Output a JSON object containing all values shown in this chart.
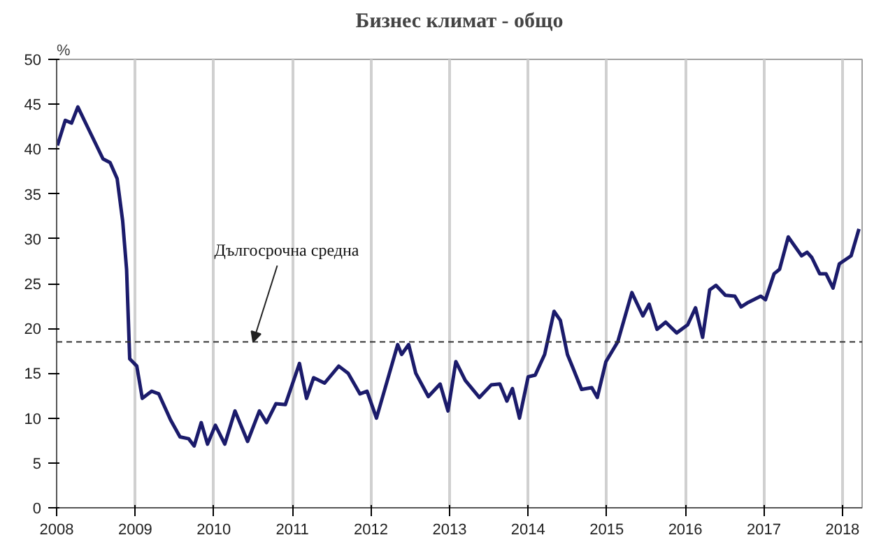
{
  "chart_data": {
    "type": "line",
    "title": "Бизнес климат - общо",
    "ylabel": "%",
    "x": [
      2008.01,
      2008.11,
      2008.19,
      2008.27,
      2008.38,
      2008.59,
      2008.68,
      2008.77,
      2008.84,
      2008.89,
      2008.93,
      2009.02,
      2009.09,
      2009.21,
      2009.3,
      2009.45,
      2009.57,
      2009.68,
      2009.75,
      2009.84,
      2009.92,
      2010.02,
      2010.14,
      2010.27,
      2010.43,
      2010.58,
      2010.67,
      2010.79,
      2010.91,
      2011.09,
      2011.18,
      2011.27,
      2011.41,
      2011.59,
      2011.71,
      2011.86,
      2011.95,
      2012.07,
      2012.34,
      2012.39,
      2012.48,
      2012.57,
      2012.73,
      2012.88,
      2012.98,
      2013.08,
      2013.2,
      2013.38,
      2013.53,
      2013.64,
      2013.73,
      2013.8,
      2013.89,
      2014.0,
      2014.09,
      2014.21,
      2014.33,
      2014.41,
      2014.5,
      2014.57,
      2014.68,
      2014.81,
      2014.88,
      2014.99,
      2015.14,
      2015.32,
      2015.46,
      2015.54,
      2015.64,
      2015.75,
      2015.89,
      2016.03,
      2016.13,
      2016.22,
      2016.31,
      2016.39,
      2016.51,
      2016.63,
      2016.71,
      2016.8,
      2016.96,
      2017.02,
      2017.13,
      2017.2,
      2017.31,
      2017.48,
      2017.55,
      2017.61,
      2017.71,
      2017.79,
      2017.88,
      2017.96,
      2018.11,
      2018.21
    ],
    "series": [
      {
        "color": "#1b1b6b",
        "values": [
          40.4,
          43.2,
          42.9,
          44.7,
          42.7,
          38.9,
          38.5,
          36.7,
          32,
          26.6,
          16.6,
          15.8,
          12.2,
          13.0,
          12.7,
          9.8,
          7.9,
          7.7,
          6.9,
          9.5,
          7.1,
          9.2,
          7.1,
          10.8,
          7.4,
          10.8,
          9.5,
          11.6,
          11.5,
          16.1,
          12.2,
          14.5,
          13.9,
          15.8,
          15.0,
          12.7,
          13.0,
          10.0,
          18.2,
          17.1,
          18.2,
          15.0,
          12.4,
          13.8,
          10.8,
          16.3,
          14.2,
          12.3,
          13.7,
          13.8,
          11.9,
          13.3,
          10.0,
          14.6,
          14.8,
          17.1,
          21.9,
          20.9,
          17.1,
          15.6,
          13.2,
          13.4,
          12.3,
          16.3,
          18.5,
          24.0,
          21.4,
          22.7,
          19.9,
          20.7,
          19.5,
          20.4,
          22.3,
          19.0,
          24.3,
          24.8,
          23.7,
          23.6,
          22.4,
          22.9,
          23.6,
          23.2,
          26.1,
          26.6,
          30.2,
          28.1,
          28.5,
          27.9,
          26.1,
          26.1,
          24.5,
          27.2,
          28.1,
          31.1
        ]
      }
    ],
    "xlim": [
      2008,
      2018.25
    ],
    "xticks": [
      2008,
      2009,
      2010,
      2011,
      2012,
      2013,
      2014,
      2015,
      2016,
      2017,
      2018
    ],
    "ylim": [
      0,
      50
    ],
    "yticks": [
      0,
      5,
      10,
      15,
      20,
      25,
      30,
      35,
      40,
      45,
      50
    ],
    "grid": "x",
    "marker": "none",
    "line_style": "solid",
    "ref_lines": [
      {
        "axis": "y",
        "value": 18.5,
        "color": "#333333",
        "line_style": "dashed"
      }
    ],
    "annotations": [
      {
        "text": "Дългосрочна средна",
        "x": 2010.5,
        "y": 18.5
      }
    ]
  }
}
